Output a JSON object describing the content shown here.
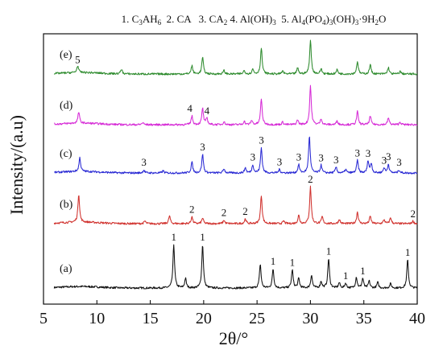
{
  "chart_data": {
    "type": "line",
    "xlabel": "2θ/°",
    "ylabel": "Intensity/(a.u)",
    "xlim": [
      5,
      40
    ],
    "x_ticks": [
      5,
      10,
      15,
      20,
      25,
      30,
      35,
      40
    ],
    "x_tick_labels": [
      "5",
      "10",
      "15",
      "20",
      "25",
      "30",
      "35",
      "40"
    ],
    "y_ticks_shown": false,
    "grid": false,
    "legend_text": {
      "p1": "1. C",
      "s1": "3",
      "p2": "AH",
      "s2": "6",
      "p3": "  2. CA   3. CA",
      "s3": "2",
      "p4": " 4. Al(OH)",
      "s4": "3",
      "p5": "  5. Al",
      "s5": "4",
      "p6": "(PO",
      "s6": "4",
      "p7": ")",
      "s7": "3",
      "p8": "(OH)",
      "s8": "3",
      "p9": "·9H",
      "s9": "2",
      "p10": "O"
    },
    "series": [
      {
        "name": "(a)",
        "color": "#111111",
        "baseline": 0,
        "peaks": [
          [
            17.2,
            10
          ],
          [
            18.3,
            2.2
          ],
          [
            19.9,
            10
          ],
          [
            25.3,
            5.5
          ],
          [
            26.5,
            4.4
          ],
          [
            28.3,
            4.2
          ],
          [
            28.9,
            2.2
          ],
          [
            30.1,
            3.0
          ],
          [
            31.0,
            1.5
          ],
          [
            31.7,
            6.8
          ],
          [
            32.7,
            1.2
          ],
          [
            33.3,
            1.1
          ],
          [
            34.3,
            2.5
          ],
          [
            34.9,
            2.2
          ],
          [
            35.5,
            1.6
          ],
          [
            36.3,
            1.3
          ],
          [
            37.5,
            1.0
          ],
          [
            39.1,
            6.5
          ]
        ],
        "peak_labels": [
          {
            "x": 17.2,
            "text": "1"
          },
          {
            "x": 19.9,
            "text": "1"
          },
          {
            "x": 26.5,
            "text": "1"
          },
          {
            "x": 28.3,
            "text": "1"
          },
          {
            "x": 31.7,
            "text": "1"
          },
          {
            "x": 33.3,
            "text": "1"
          },
          {
            "x": 34.9,
            "text": "1"
          },
          {
            "x": 39.1,
            "text": "1"
          }
        ]
      },
      {
        "name": "(b)",
        "color": "#d0312d",
        "baseline": 1,
        "peaks": [
          [
            8.3,
            6.5
          ],
          [
            14.5,
            0.6
          ],
          [
            16.8,
            1.8
          ],
          [
            18.9,
            1.6
          ],
          [
            19.9,
            1.3
          ],
          [
            21.9,
            0.8
          ],
          [
            23.9,
            1.1
          ],
          [
            25.4,
            6.5
          ],
          [
            27.5,
            0.6
          ],
          [
            28.9,
            1.9
          ],
          [
            30.0,
            8.5
          ],
          [
            31.1,
            1.6
          ],
          [
            32.7,
            1.0
          ],
          [
            34.4,
            2.7
          ],
          [
            35.6,
            1.7
          ],
          [
            36.9,
            0.9
          ],
          [
            37.5,
            1.4
          ],
          [
            39.6,
            0.6
          ]
        ],
        "peak_labels": [
          {
            "x": 18.9,
            "text": "2"
          },
          {
            "x": 21.9,
            "text": "2"
          },
          {
            "x": 23.9,
            "text": "2"
          },
          {
            "x": 30.0,
            "text": "2"
          },
          {
            "x": 39.6,
            "text": "2"
          }
        ]
      },
      {
        "name": "(c)",
        "color": "#2a2ad4",
        "baseline": 2,
        "peaks": [
          [
            8.4,
            3.2
          ],
          [
            14.4,
            0.7
          ],
          [
            16.2,
            0.5
          ],
          [
            18.9,
            2.5
          ],
          [
            19.9,
            4.3
          ],
          [
            21.9,
            1.0
          ],
          [
            23.9,
            1.2
          ],
          [
            24.6,
            1.9
          ],
          [
            25.4,
            5.8
          ],
          [
            27.1,
            0.8
          ],
          [
            28.9,
            1.9
          ],
          [
            29.9,
            8.5
          ],
          [
            31.0,
            1.8
          ],
          [
            32.4,
            1.3
          ],
          [
            33.3,
            0.8
          ],
          [
            34.4,
            2.9
          ],
          [
            35.4,
            2.8
          ],
          [
            35.7,
            2.1
          ],
          [
            36.9,
            1.2
          ],
          [
            37.3,
            2.0
          ],
          [
            38.3,
            0.7
          ]
        ],
        "peak_labels": [
          {
            "x": 14.4,
            "text": "3"
          },
          {
            "x": 19.9,
            "text": "3"
          },
          {
            "x": 24.6,
            "text": "3"
          },
          {
            "x": 25.4,
            "text": "3"
          },
          {
            "x": 27.1,
            "text": "3"
          },
          {
            "x": 28.9,
            "text": "3"
          },
          {
            "x": 31.0,
            "text": "3"
          },
          {
            "x": 32.4,
            "text": "3"
          },
          {
            "x": 34.4,
            "text": "3"
          },
          {
            "x": 35.4,
            "text": "3"
          },
          {
            "x": 36.9,
            "text": "3"
          },
          {
            "x": 37.3,
            "text": "3"
          },
          {
            "x": 38.3,
            "text": "3"
          }
        ]
      },
      {
        "name": "(d)",
        "color": "#d62ad6",
        "baseline": 3,
        "peaks": [
          [
            8.3,
            2.6
          ],
          [
            14.3,
            0.5
          ],
          [
            18.9,
            2.0
          ],
          [
            19.9,
            3.8
          ],
          [
            20.3,
            1.5
          ],
          [
            21.9,
            0.7
          ],
          [
            23.8,
            0.8
          ],
          [
            24.5,
            1.0
          ],
          [
            25.4,
            6.0
          ],
          [
            27.4,
            0.6
          ],
          [
            28.8,
            1.1
          ],
          [
            30.0,
            9.0
          ],
          [
            31.0,
            1.4
          ],
          [
            32.5,
            0.9
          ],
          [
            34.4,
            3.0
          ],
          [
            35.6,
            2.0
          ],
          [
            37.3,
            1.6
          ],
          [
            38.4,
            0.6
          ]
        ],
        "peak_labels": [
          {
            "x": 18.7,
            "text": "4"
          },
          {
            "x": 20.3,
            "text": "4"
          }
        ]
      },
      {
        "name": "(e)",
        "color": "#2e8b2e",
        "baseline": 4,
        "peaks": [
          [
            8.2,
            1.6
          ],
          [
            12.3,
            1.1
          ],
          [
            18.9,
            1.9
          ],
          [
            19.9,
            3.9
          ],
          [
            21.9,
            0.8
          ],
          [
            23.8,
            0.8
          ],
          [
            24.6,
            1.1
          ],
          [
            25.4,
            6.0
          ],
          [
            27.4,
            0.7
          ],
          [
            28.8,
            1.4
          ],
          [
            30.0,
            7.8
          ],
          [
            31.0,
            1.2
          ],
          [
            32.5,
            1.0
          ],
          [
            34.4,
            2.9
          ],
          [
            35.6,
            2.2
          ],
          [
            37.3,
            1.5
          ],
          [
            38.4,
            0.6
          ]
        ],
        "peak_labels": [
          {
            "x": 8.2,
            "text": "5"
          }
        ]
      }
    ]
  }
}
